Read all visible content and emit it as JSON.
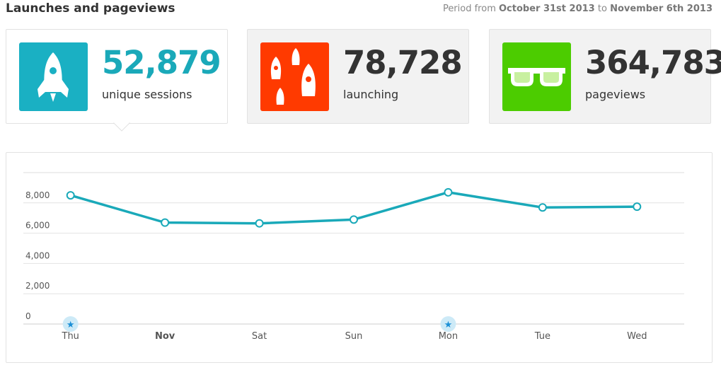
{
  "header": {
    "title": "Launches and pageviews",
    "period": {
      "prefix": "Period from",
      "start": "October 31st 2013",
      "middle": "to",
      "end": "November 6th 2013"
    }
  },
  "cards": [
    {
      "value": "52,879",
      "label": "unique sessions"
    },
    {
      "value": "78,728",
      "label": "launching"
    },
    {
      "value": "364,783",
      "label": "pageviews"
    }
  ],
  "chart_data": {
    "type": "line",
    "categories": [
      "Thu",
      "Nov",
      "Sat",
      "Sun",
      "Mon",
      "Tue",
      "Wed"
    ],
    "series": [
      {
        "name": "unique sessions",
        "color": "#1aa9b9",
        "values": [
          8500,
          6700,
          6650,
          6900,
          8700,
          7700,
          7750
        ]
      }
    ],
    "ylim": [
      0,
      10000
    ],
    "yticks": [
      0,
      {
        "value": 2000,
        "label": "2,000"
      },
      {
        "value": 4000,
        "label": "4,000"
      },
      {
        "value": 6000,
        "label": "6,000"
      },
      {
        "value": 8000,
        "label": "8,000"
      }
    ],
    "grid": true
  }
}
